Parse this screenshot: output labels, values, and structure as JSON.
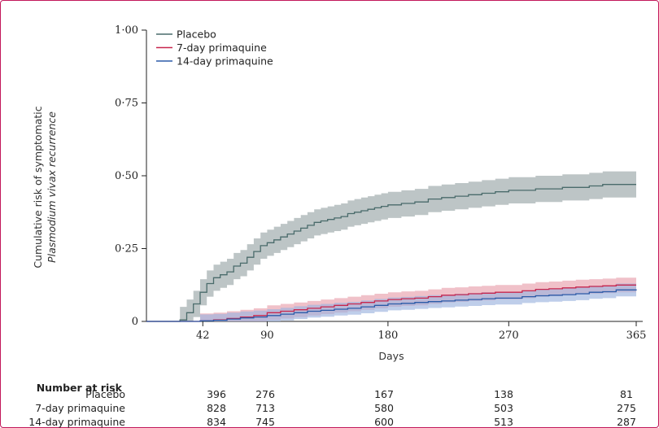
{
  "chart_data": {
    "type": "line",
    "xlabel": "Days",
    "ylabel_line1": "Cumulative risk of symptomatic",
    "ylabel_line2": "Plasmodium vivax recurrence",
    "xlim": [
      0,
      365
    ],
    "ylim": [
      0,
      1
    ],
    "x_ticks": [
      42,
      90,
      180,
      270,
      365
    ],
    "x_tick_labels": [
      "42",
      "90",
      "180",
      "270",
      "365"
    ],
    "y_ticks": [
      0,
      0.25,
      0.5,
      0.75,
      1.0
    ],
    "y_tick_labels": [
      "0",
      "0·25",
      "0·50",
      "0·75",
      "1·00"
    ],
    "legend_placement": "top-left",
    "series": [
      {
        "name": "Placebo",
        "color": "#4a6b6b",
        "band_color": "#9aa6a8",
        "x": [
          0,
          15,
          25,
          30,
          35,
          40,
          45,
          50,
          55,
          60,
          65,
          70,
          75,
          80,
          85,
          90,
          95,
          100,
          105,
          110,
          115,
          120,
          125,
          130,
          135,
          140,
          145,
          150,
          155,
          160,
          165,
          170,
          175,
          180,
          190,
          200,
          210,
          220,
          230,
          240,
          250,
          260,
          270,
          280,
          290,
          300,
          310,
          320,
          330,
          340,
          350,
          365
        ],
        "y": [
          0,
          0,
          0.005,
          0.03,
          0.06,
          0.1,
          0.13,
          0.15,
          0.16,
          0.17,
          0.19,
          0.2,
          0.22,
          0.24,
          0.26,
          0.27,
          0.28,
          0.29,
          0.3,
          0.31,
          0.32,
          0.33,
          0.34,
          0.345,
          0.35,
          0.355,
          0.36,
          0.37,
          0.375,
          0.38,
          0.385,
          0.39,
          0.395,
          0.4,
          0.405,
          0.41,
          0.42,
          0.425,
          0.43,
          0.435,
          0.44,
          0.445,
          0.45,
          0.45,
          0.455,
          0.455,
          0.46,
          0.46,
          0.465,
          0.47,
          0.47,
          0.47
        ],
        "ci_halfwidth": 0.045
      },
      {
        "name": "7-day primaquine",
        "color": "#c8264d",
        "band_color": "#e8a0ac",
        "x": [
          0,
          25,
          40,
          50,
          60,
          70,
          80,
          90,
          100,
          110,
          120,
          130,
          140,
          150,
          160,
          170,
          180,
          190,
          200,
          210,
          220,
          230,
          240,
          250,
          260,
          270,
          280,
          290,
          300,
          310,
          320,
          330,
          340,
          350,
          365
        ],
        "y": [
          0,
          0,
          0.002,
          0.005,
          0.01,
          0.015,
          0.02,
          0.03,
          0.035,
          0.04,
          0.045,
          0.05,
          0.055,
          0.06,
          0.065,
          0.07,
          0.075,
          0.078,
          0.08,
          0.085,
          0.09,
          0.092,
          0.095,
          0.097,
          0.1,
          0.1,
          0.105,
          0.11,
          0.112,
          0.115,
          0.118,
          0.12,
          0.122,
          0.125,
          0.125
        ],
        "ci_halfwidth": 0.025
      },
      {
        "name": "14-day primaquine",
        "color": "#2b5ba8",
        "band_color": "#9cb3de",
        "x": [
          0,
          25,
          40,
          50,
          60,
          70,
          80,
          90,
          100,
          110,
          120,
          130,
          140,
          150,
          160,
          170,
          180,
          190,
          200,
          210,
          220,
          230,
          240,
          250,
          260,
          270,
          280,
          290,
          300,
          310,
          320,
          330,
          340,
          350,
          365
        ],
        "y": [
          0,
          0,
          0.002,
          0.004,
          0.008,
          0.012,
          0.015,
          0.02,
          0.025,
          0.03,
          0.035,
          0.038,
          0.042,
          0.045,
          0.05,
          0.055,
          0.06,
          0.062,
          0.065,
          0.068,
          0.07,
          0.073,
          0.075,
          0.078,
          0.08,
          0.08,
          0.085,
          0.088,
          0.09,
          0.092,
          0.095,
          0.1,
          0.102,
          0.108,
          0.11
        ],
        "ci_halfwidth": 0.022
      }
    ]
  },
  "risk_table": {
    "title": "Number at risk",
    "rows": [
      {
        "label": "Placebo",
        "values": [
          "396",
          "276",
          "167",
          "138",
          "81"
        ]
      },
      {
        "label": "7-day primaquine",
        "values": [
          "828",
          "713",
          "580",
          "503",
          "275"
        ]
      },
      {
        "label": "14-day primaquine",
        "values": [
          "834",
          "745",
          "600",
          "513",
          "287"
        ]
      }
    ]
  }
}
